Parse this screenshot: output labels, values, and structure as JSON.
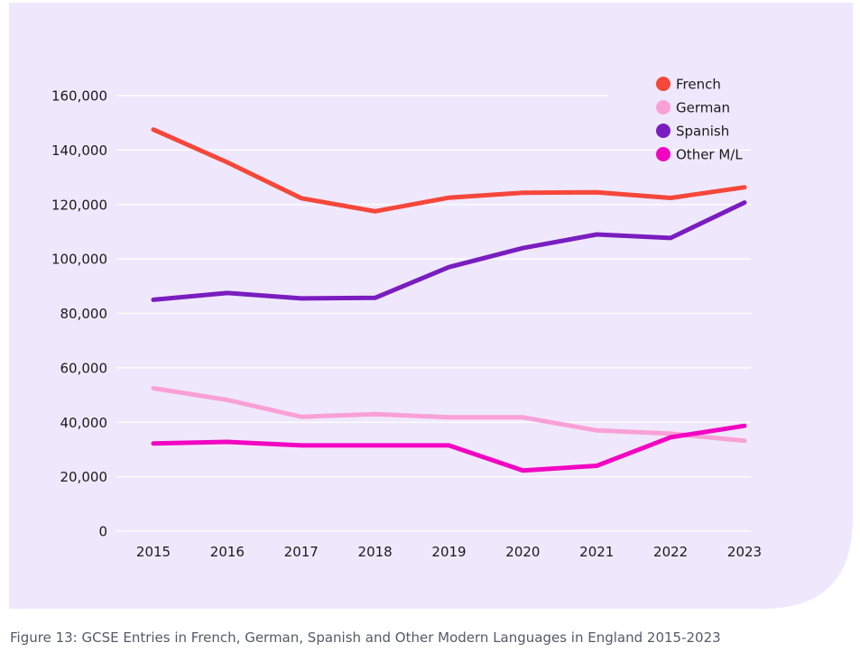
{
  "caption": "Figure 13: GCSE Entries in French, German, Spanish and Other Modern Languages in England 2015-2023",
  "chart_data": {
    "type": "line",
    "x": [
      2015,
      2016,
      2017,
      2018,
      2019,
      2020,
      2021,
      2022,
      2023
    ],
    "ylim": [
      0,
      160000
    ],
    "yticks": [
      0,
      20000,
      40000,
      60000,
      80000,
      100000,
      120000,
      140000,
      160000
    ],
    "ytick_labels": [
      "0",
      "20,000",
      "40,000",
      "60,000",
      "80,000",
      "100,000",
      "120,000",
      "140,000",
      "160,000"
    ],
    "xtick_labels": [
      "2015",
      "2016",
      "2017",
      "2018",
      "2019",
      "2020",
      "2021",
      "2022",
      "2023"
    ],
    "grid": true,
    "legend_position": "top-right",
    "series": [
      {
        "name": "French",
        "color": "#f5473a",
        "values": [
          147500,
          135500,
          122300,
          117500,
          122500,
          124300,
          124500,
          122400,
          126300
        ]
      },
      {
        "name": "German",
        "color": "#f9a1d6",
        "values": [
          52500,
          48200,
          42000,
          43000,
          41800,
          41800,
          37000,
          35800,
          33200
        ]
      },
      {
        "name": "Spanish",
        "color": "#7a1dbf",
        "values": [
          85000,
          87500,
          85500,
          85700,
          97000,
          104000,
          109000,
          107700,
          120700
        ]
      },
      {
        "name": "Other M/L",
        "color": "#f205c2",
        "values": [
          32200,
          32800,
          31500,
          31500,
          31500,
          22300,
          24000,
          34500,
          38700
        ]
      }
    ]
  }
}
